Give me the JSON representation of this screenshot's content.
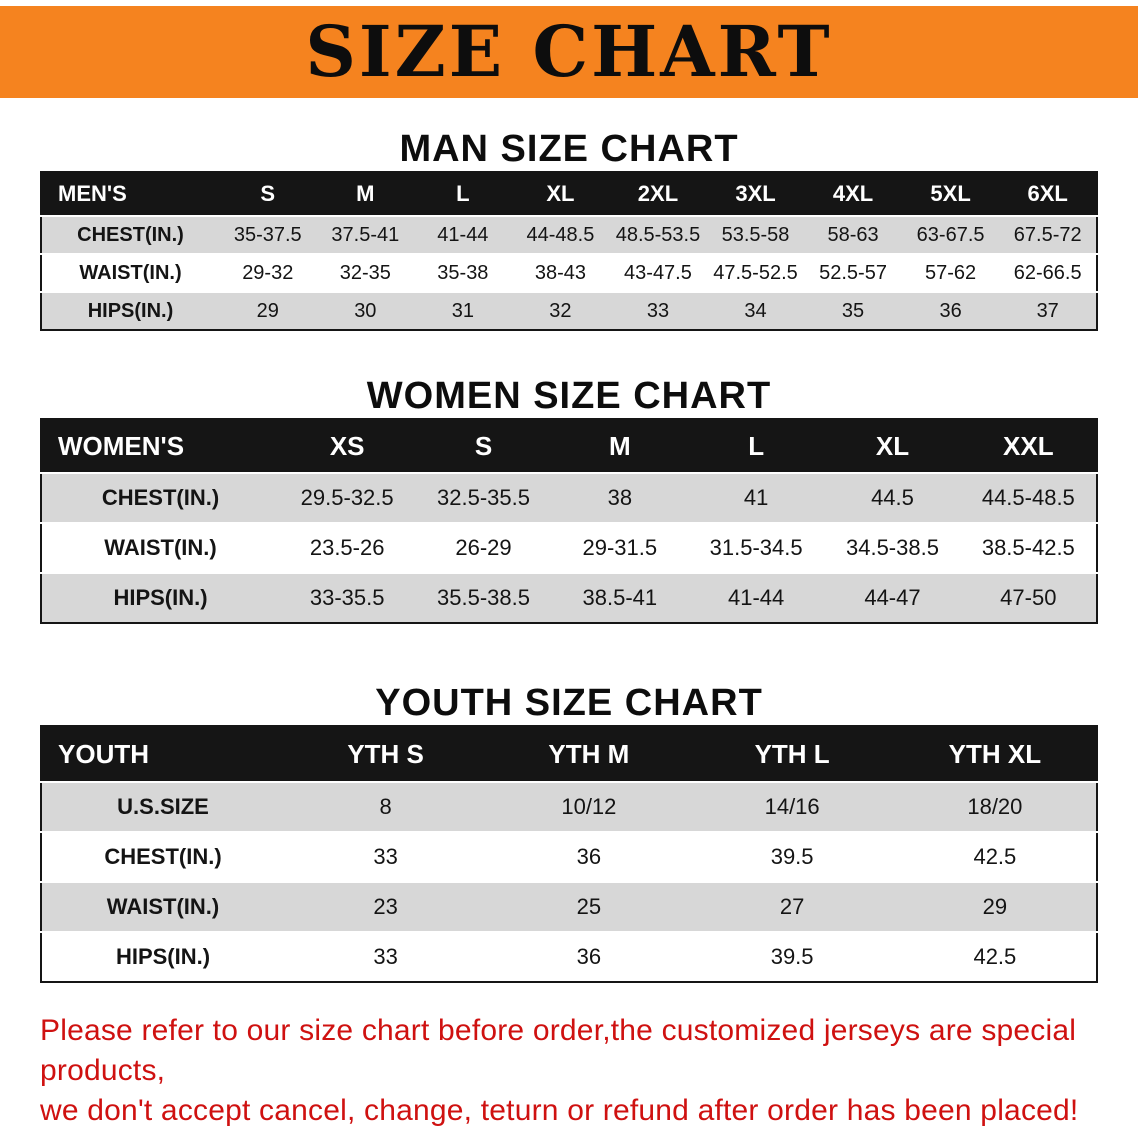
{
  "banner": {
    "title": "SIZE CHART"
  },
  "sections": [
    {
      "heading": "MAN SIZE CHART",
      "table": {
        "header": [
          "MEN'S",
          "S",
          "M",
          "L",
          "XL",
          "2XL",
          "3XL",
          "4XL",
          "5XL",
          "6XL"
        ],
        "rows": [
          [
            "CHEST(IN.)",
            "35-37.5",
            "37.5-41",
            "41-44",
            "44-48.5",
            "48.5-53.5",
            "53.5-58",
            "58-63",
            "63-67.5",
            "67.5-72"
          ],
          [
            "WAIST(IN.)",
            "29-32",
            "32-35",
            "35-38",
            "38-43",
            "43-47.5",
            "47.5-52.5",
            "52.5-57",
            "57-62",
            "62-66.5"
          ],
          [
            "HIPS(IN.)",
            "29",
            "30",
            "31",
            "32",
            "33",
            "34",
            "35",
            "36",
            "37"
          ]
        ]
      }
    },
    {
      "heading": "WOMEN SIZE CHART",
      "table": {
        "header": [
          "WOMEN'S",
          "XS",
          "S",
          "M",
          "L",
          "XL",
          "XXL"
        ],
        "rows": [
          [
            "CHEST(IN.)",
            "29.5-32.5",
            "32.5-35.5",
            "38",
            "41",
            "44.5",
            "44.5-48.5"
          ],
          [
            "WAIST(IN.)",
            "23.5-26",
            "26-29",
            "29-31.5",
            "31.5-34.5",
            "34.5-38.5",
            "38.5-42.5"
          ],
          [
            "HIPS(IN.)",
            "33-35.5",
            "35.5-38.5",
            "38.5-41",
            "41-44",
            "44-47",
            "47-50"
          ]
        ]
      }
    },
    {
      "heading": "YOUTH SIZE CHART",
      "table": {
        "header": [
          "YOUTH",
          "YTH S",
          "YTH M",
          "YTH L",
          "YTH XL"
        ],
        "rows": [
          [
            "U.S.SIZE",
            "8",
            "10/12",
            "14/16",
            "18/20"
          ],
          [
            "CHEST(IN.)",
            "33",
            "36",
            "39.5",
            "42.5"
          ],
          [
            "WAIST(IN.)",
            "23",
            "25",
            "27",
            "29"
          ],
          [
            "HIPS(IN.)",
            "33",
            "36",
            "39.5",
            "42.5"
          ]
        ]
      }
    }
  ],
  "footer": {
    "line1": "Please refer to our size chart before order,the customized jerseys are special products,",
    "line2": "we don't accept cancel, change, teturn or refund after order has been placed!"
  },
  "colors": {
    "banner_orange": "#F5831F",
    "header_black": "#151515",
    "row_gray": "#d7d7d7",
    "footer_red": "#cf1110"
  }
}
